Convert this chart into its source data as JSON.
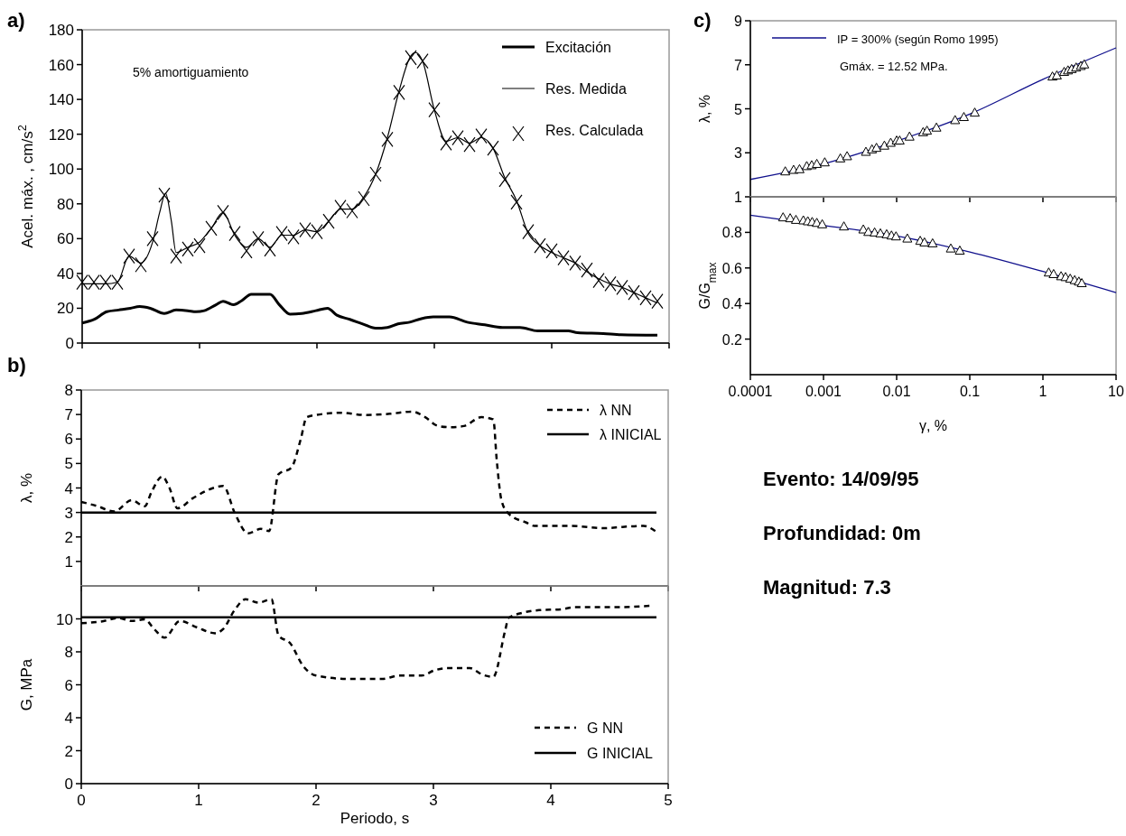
{
  "chart_data": [
    {
      "type": "line",
      "title": "a)",
      "ylabel": "Acel. máx. , cm/s$^{2}$",
      "xlim": [
        0,
        5
      ],
      "xticks": [
        0,
        1,
        2,
        3,
        4,
        5
      ],
      "ylim": [
        0,
        180
      ],
      "yticks": [
        0,
        20,
        40,
        60,
        80,
        100,
        120,
        140,
        160,
        180
      ],
      "tick_labels": "y",
      "legend": "top right",
      "annotations": [
        "5% amortiguamiento"
      ],
      "series": [
        {
          "name": "Excitación",
          "type": "line",
          "color": "#000000",
          "x": [
            0,
            0.1,
            0.21,
            0.31,
            0.41,
            0.49,
            0.58,
            0.7,
            0.8,
            0.9,
            0.97,
            1.04,
            1.14,
            1.2,
            1.29,
            1.36,
            1.44,
            1.6,
            1.68,
            1.77,
            1.87,
            1.99,
            2.09,
            2.17,
            2.28,
            2.39,
            2.5,
            2.6,
            2.69,
            2.79,
            2.89,
            2.99,
            3.13,
            3.28,
            3.43,
            3.58,
            3.73,
            3.88,
            4.14,
            4.22,
            4.44,
            4.59,
            4.9
          ],
          "values": [
            11.5,
            13.5,
            18,
            19,
            20,
            21,
            20,
            17,
            19,
            18.6,
            18,
            18.6,
            22,
            24,
            22,
            24.4,
            28,
            28,
            22,
            16.6,
            17,
            18.6,
            20,
            16,
            13.6,
            11,
            8.5,
            9,
            11,
            12,
            14,
            15,
            15,
            12,
            10.5,
            9,
            9,
            7,
            7,
            6,
            5.5,
            4.8,
            4.5
          ]
        },
        {
          "name": "Res. Medida",
          "type": "line",
          "color": "#000000",
          "x": [
            0,
            0.1,
            0.2,
            0.3,
            0.4,
            0.5,
            0.6,
            0.66,
            0.71,
            0.76,
            0.8,
            0.9,
            1.0,
            1.1,
            1.2,
            1.3,
            1.4,
            1.5,
            1.6,
            1.7,
            1.8,
            1.9,
            2.0,
            2.1,
            2.2,
            2.3,
            2.4,
            2.5,
            2.6,
            2.7,
            2.8,
            2.84,
            2.9,
            3.0,
            3.1,
            3.2,
            3.3,
            3.4,
            3.5,
            3.6,
            3.7,
            3.8,
            3.9,
            4.0,
            4.1,
            4.2,
            4.3,
            4.4,
            4.5,
            4.6,
            4.7,
            4.8,
            4.9
          ],
          "values": [
            34,
            34,
            34,
            35,
            50,
            46,
            58,
            75,
            86,
            70,
            52,
            55,
            58,
            66,
            75,
            62,
            55,
            60,
            55,
            62,
            62,
            65,
            64,
            70,
            77,
            77,
            84,
            97,
            118,
            145,
            165,
            167,
            162,
            134,
            116,
            118,
            115,
            118,
            112,
            95,
            82,
            63,
            56,
            52,
            49,
            46,
            41,
            37,
            34,
            32,
            29,
            26,
            23
          ]
        },
        {
          "name": "Res. Calculada",
          "type": "scatter",
          "marker": "cross",
          "color": "#000000",
          "x": [
            0,
            0.1,
            0.2,
            0.3,
            0.4,
            0.5,
            0.6,
            0.7,
            0.8,
            0.9,
            1.0,
            1.1,
            1.2,
            1.3,
            1.4,
            1.5,
            1.6,
            1.7,
            1.8,
            1.9,
            2.0,
            2.1,
            2.2,
            2.3,
            2.4,
            2.5,
            2.6,
            2.7,
            2.8,
            2.9,
            3.0,
            3.1,
            3.2,
            3.3,
            3.4,
            3.5,
            3.6,
            3.7,
            3.8,
            3.9,
            4.0,
            4.1,
            4.2,
            4.3,
            4.4,
            4.5,
            4.6,
            4.7,
            4.8,
            4.9
          ],
          "values": [
            35,
            35,
            35,
            35,
            50,
            45,
            60,
            85,
            50,
            54,
            56,
            66,
            75,
            63,
            53,
            60,
            54,
            63,
            61,
            65,
            64,
            70,
            78,
            76,
            83,
            97,
            117,
            144,
            164,
            162,
            134,
            115,
            118,
            114,
            119,
            112,
            94,
            81,
            64,
            56,
            53,
            49,
            46,
            42,
            36,
            34,
            32,
            29,
            26,
            24
          ]
        }
      ]
    },
    {
      "type": "line",
      "title": "b)",
      "ylabel": "λ, %",
      "xlim": [
        0,
        5
      ],
      "xticks": [
        0,
        1,
        2,
        3,
        4,
        5
      ],
      "ylim": [
        0,
        8
      ],
      "yticks": [
        1,
        2,
        3,
        4,
        5,
        6,
        7,
        8
      ],
      "tick_labels": "y",
      "legend": "top right",
      "series": [
        {
          "name": "λ NN",
          "line_style": "dashed",
          "color": "#000000",
          "x": [
            0,
            0.13,
            0.28,
            0.43,
            0.54,
            0.6,
            0.69,
            0.75,
            0.82,
            0.95,
            1.14,
            1.21,
            1.31,
            1.42,
            1.53,
            1.6,
            1.68,
            1.79,
            1.87,
            1.92,
            2.0,
            2.22,
            2.41,
            2.63,
            2.82,
            2.93,
            3.04,
            3.15,
            3.26,
            3.41,
            3.51,
            3.54,
            3.58,
            3.64,
            3.79,
            3.86,
            4.16,
            4.46,
            4.61,
            4.79,
            4.89
          ],
          "values": [
            3.43,
            3.27,
            3.04,
            3.5,
            3.25,
            3.85,
            4.47,
            4.02,
            3.17,
            3.58,
            4.02,
            4.08,
            2.95,
            2.15,
            2.33,
            2.24,
            4.56,
            4.83,
            6.0,
            6.89,
            6.98,
            7.07,
            6.98,
            7.03,
            7.12,
            6.89,
            6.53,
            6.48,
            6.53,
            6.89,
            6.8,
            5.1,
            3.49,
            2.95,
            2.59,
            2.45,
            2.45,
            2.36,
            2.41,
            2.45,
            2.24
          ]
        },
        {
          "name": "λ INICIAL",
          "line_style": "solid",
          "color": "#000000",
          "x": [
            0,
            4.9
          ],
          "values": [
            3,
            3
          ]
        }
      ]
    },
    {
      "type": "line",
      "xlabel": "Periodo, s",
      "ylabel": "G, MPa",
      "xlim": [
        0,
        5
      ],
      "xticks": [
        0,
        1,
        2,
        3,
        4,
        5
      ],
      "ylim": [
        0,
        12
      ],
      "yticks": [
        0,
        2,
        4,
        6,
        8,
        10
      ],
      "legend": "bottom right",
      "series": [
        {
          "name": "G NN",
          "line_style": "dashed",
          "color": "#000000",
          "x": [
            0,
            0.17,
            0.32,
            0.43,
            0.54,
            0.62,
            0.71,
            0.84,
            0.99,
            1.14,
            1.21,
            1.31,
            1.4,
            1.51,
            1.62,
            1.68,
            1.78,
            1.89,
            2.0,
            2.3,
            2.56,
            2.71,
            2.9,
            3.01,
            3.12,
            3.31,
            3.42,
            3.51,
            3.61,
            3.64,
            3.76,
            3.9,
            4.09,
            4.2,
            4.54,
            4.84
          ],
          "values": [
            9.74,
            9.84,
            10.05,
            9.87,
            9.97,
            9.39,
            8.86,
            9.87,
            9.47,
            9.13,
            9.39,
            10.58,
            11.19,
            10.98,
            11.19,
            9.0,
            8.52,
            7.14,
            6.56,
            6.35,
            6.35,
            6.56,
            6.56,
            6.88,
            7.01,
            7.01,
            6.61,
            6.48,
            9.26,
            10.05,
            10.37,
            10.53,
            10.58,
            10.71,
            10.71,
            10.79
          ]
        },
        {
          "name": "G INICIAL",
          "line_style": "solid",
          "color": "#000000",
          "x": [
            0,
            4.9
          ],
          "values": [
            10.1,
            10.1
          ]
        }
      ]
    },
    {
      "type": "line",
      "title": "c)",
      "ylabel": "λ, %",
      "log": "x",
      "xlim": [
        0.0001,
        10
      ],
      "xticks": [
        0.0001,
        0.001,
        0.01,
        0.1,
        1,
        10
      ],
      "ylim": [
        1,
        9
      ],
      "yticks": [
        1,
        3,
        5,
        7,
        9
      ],
      "tick_labels": "y",
      "legend": "top left",
      "annotations": [
        "Gmáx. = 12.52 MPa."
      ],
      "series": [
        {
          "name": "IP = 300% (según Romo 1995)",
          "type": "line",
          "color": "#10108c",
          "x": [
            0.0001,
            0.001,
            0.01,
            0.1,
            1,
            10
          ],
          "values": [
            1.79,
            2.5,
            3.53,
            4.76,
            6.34,
            7.77
          ]
        },
        {
          "type": "scatter",
          "marker": "triangle",
          "color": "#000000",
          "x": [
            0.0003,
            0.00039,
            0.00047,
            0.00059,
            0.00069,
            0.00081,
            0.00104,
            0.0017,
            0.0021,
            0.0038,
            0.0046,
            0.0053,
            0.0068,
            0.0083,
            0.01,
            0.011,
            0.015,
            0.023,
            0.026,
            0.035,
            0.063,
            0.083,
            0.117,
            1.35,
            1.55,
            1.95,
            2.2,
            2.47,
            2.84,
            3.3,
            3.67
          ],
          "values": [
            2.16,
            2.23,
            2.26,
            2.4,
            2.44,
            2.5,
            2.57,
            2.75,
            2.85,
            3.05,
            3.16,
            3.23,
            3.33,
            3.46,
            3.56,
            3.56,
            3.74,
            3.94,
            4.01,
            4.15,
            4.49,
            4.63,
            4.83,
            6.47,
            6.52,
            6.68,
            6.75,
            6.81,
            6.88,
            6.95,
            7.02
          ]
        }
      ]
    },
    {
      "type": "line",
      "xlabel": "γ, %",
      "ylabel": "G/G$_{max}$",
      "log": "x",
      "xlim": [
        0.0001,
        10
      ],
      "xticks": [
        0.0001,
        0.001,
        0.01,
        0.1,
        1,
        10
      ],
      "ylim": [
        0,
        1
      ],
      "yticks": [
        0.2,
        0.4,
        0.6,
        0.8
      ],
      "series": [
        {
          "type": "line",
          "color": "#10108c",
          "x": [
            0.0001,
            0.001,
            0.01,
            0.1,
            1,
            10
          ],
          "values": [
            0.897,
            0.84,
            0.78,
            0.69,
            0.58,
            0.461
          ]
        },
        {
          "type": "scatter",
          "marker": "triangle",
          "color": "#000000",
          "x": [
            0.00028,
            0.00035,
            0.00042,
            0.00053,
            0.00061,
            0.0007,
            0.00081,
            0.00096,
            0.0019,
            0.0035,
            0.0041,
            0.005,
            0.006,
            0.0073,
            0.0085,
            0.0098,
            0.014,
            0.021,
            0.024,
            0.031,
            0.055,
            0.073,
            1.2,
            1.4,
            1.77,
            2.04,
            2.36,
            2.72,
            3.1,
            3.4
          ],
          "values": [
            0.885,
            0.88,
            0.871,
            0.868,
            0.863,
            0.859,
            0.854,
            0.846,
            0.834,
            0.817,
            0.803,
            0.8,
            0.795,
            0.79,
            0.783,
            0.778,
            0.766,
            0.753,
            0.744,
            0.739,
            0.71,
            0.698,
            0.575,
            0.566,
            0.554,
            0.549,
            0.54,
            0.532,
            0.524,
            0.515
          ]
        }
      ]
    },
    {
      "type": "other",
      "annotations": [
        "Evento: 14/09/95",
        "Profundidad: 0m",
        "Magnitud: 7.3"
      ]
    }
  ]
}
